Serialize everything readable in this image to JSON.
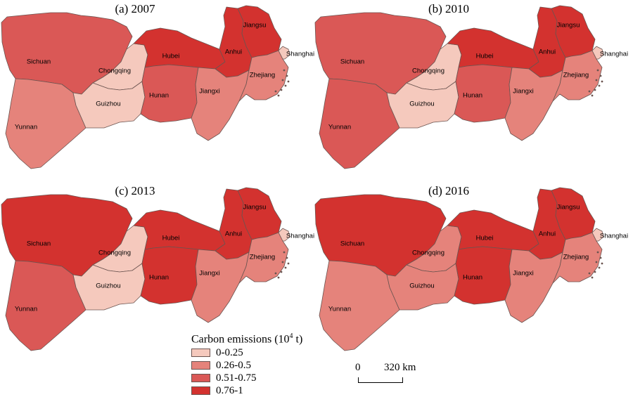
{
  "map": {
    "colors": {
      "class1": "#f5c9bd",
      "class2": "#e5837b",
      "class3": "#da5856",
      "class4": "#d3322f",
      "border": "#6b5450"
    },
    "panels": [
      {
        "title": "(a) 2007",
        "classes": {
          "Sichuan": 3,
          "Yunnan": 2,
          "Chongqing": 1,
          "Guizhou": 1,
          "Hubei": 4,
          "Hunan": 3,
          "Anhui": 4,
          "Jiangxi": 2,
          "Jiangsu": 4,
          "Zhejiang": 2,
          "Shanghai": 1
        }
      },
      {
        "title": "(b) 2010",
        "classes": {
          "Sichuan": 3,
          "Yunnan": 3,
          "Chongqing": 1,
          "Guizhou": 1,
          "Hubei": 4,
          "Hunan": 3,
          "Anhui": 4,
          "Jiangxi": 2,
          "Jiangsu": 4,
          "Zhejiang": 2,
          "Shanghai": 1
        }
      },
      {
        "title": "(c) 2013",
        "classes": {
          "Sichuan": 4,
          "Yunnan": 3,
          "Chongqing": 1,
          "Guizhou": 1,
          "Hubei": 4,
          "Hunan": 4,
          "Anhui": 4,
          "Jiangxi": 2,
          "Jiangsu": 4,
          "Zhejiang": 2,
          "Shanghai": 1
        }
      },
      {
        "title": "(d) 2016",
        "classes": {
          "Sichuan": 4,
          "Yunnan": 2,
          "Chongqing": 2,
          "Guizhou": 2,
          "Hubei": 4,
          "Hunan": 4,
          "Anhui": 4,
          "Jiangxi": 2,
          "Jiangsu": 4,
          "Zhejiang": 2,
          "Shanghai": 1
        }
      }
    ]
  },
  "legend": {
    "title": "Carbon emissions (10",
    "title_sup": "4",
    "title_unit": " t)",
    "items": [
      "0-0.25",
      "0.26-0.5",
      "0.51-0.75",
      "0.76-1"
    ]
  },
  "scale": {
    "zero": "0",
    "max": "320 km"
  }
}
